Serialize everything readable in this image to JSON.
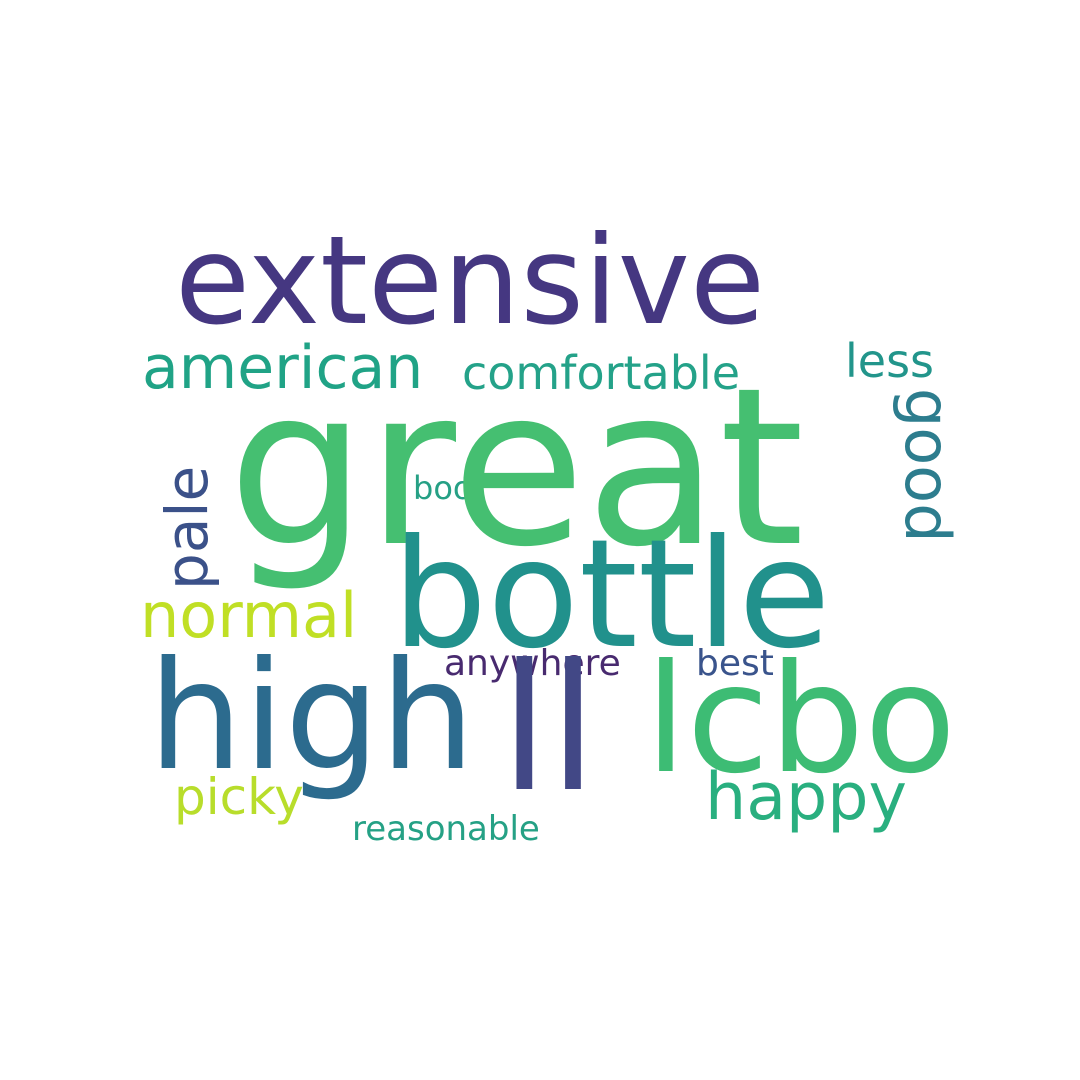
{
  "wordcloud": {
    "words": [
      {
        "id": "extensive",
        "text": "extensive",
        "color": "#453781"
      },
      {
        "id": "great",
        "text": "great",
        "color": "#45bf71"
      },
      {
        "id": "american",
        "text": "american",
        "color": "#20a386"
      },
      {
        "id": "comfortable",
        "text": "comfortable",
        "color": "#24a289"
      },
      {
        "id": "less",
        "text": "less",
        "color": "#22958b"
      },
      {
        "id": "good",
        "text": "good",
        "color": "#2d7d8e"
      },
      {
        "id": "pale",
        "text": "pale",
        "color": "#3b5189"
      },
      {
        "id": "boo",
        "text": "boo",
        "color": "#26a085"
      },
      {
        "id": "bottle",
        "text": "bottle",
        "color": "#21918c"
      },
      {
        "id": "normal",
        "text": "normal",
        "color": "#c0df25"
      },
      {
        "id": "high",
        "text": "high",
        "color": "#2c6b8e"
      },
      {
        "id": "ll",
        "text": "ll",
        "color": "#424886"
      },
      {
        "id": "lcbo",
        "text": "lcbo",
        "color": "#3dbc74"
      },
      {
        "id": "anywhere",
        "text": "anywhere",
        "color": "#482a6f"
      },
      {
        "id": "best",
        "text": "best",
        "color": "#3a548c"
      },
      {
        "id": "happy",
        "text": "happy",
        "color": "#29af7f"
      },
      {
        "id": "picky",
        "text": "picky",
        "color": "#b8dd2b"
      },
      {
        "id": "reasonable",
        "text": "reasonable",
        "color": "#25a185"
      }
    ]
  }
}
